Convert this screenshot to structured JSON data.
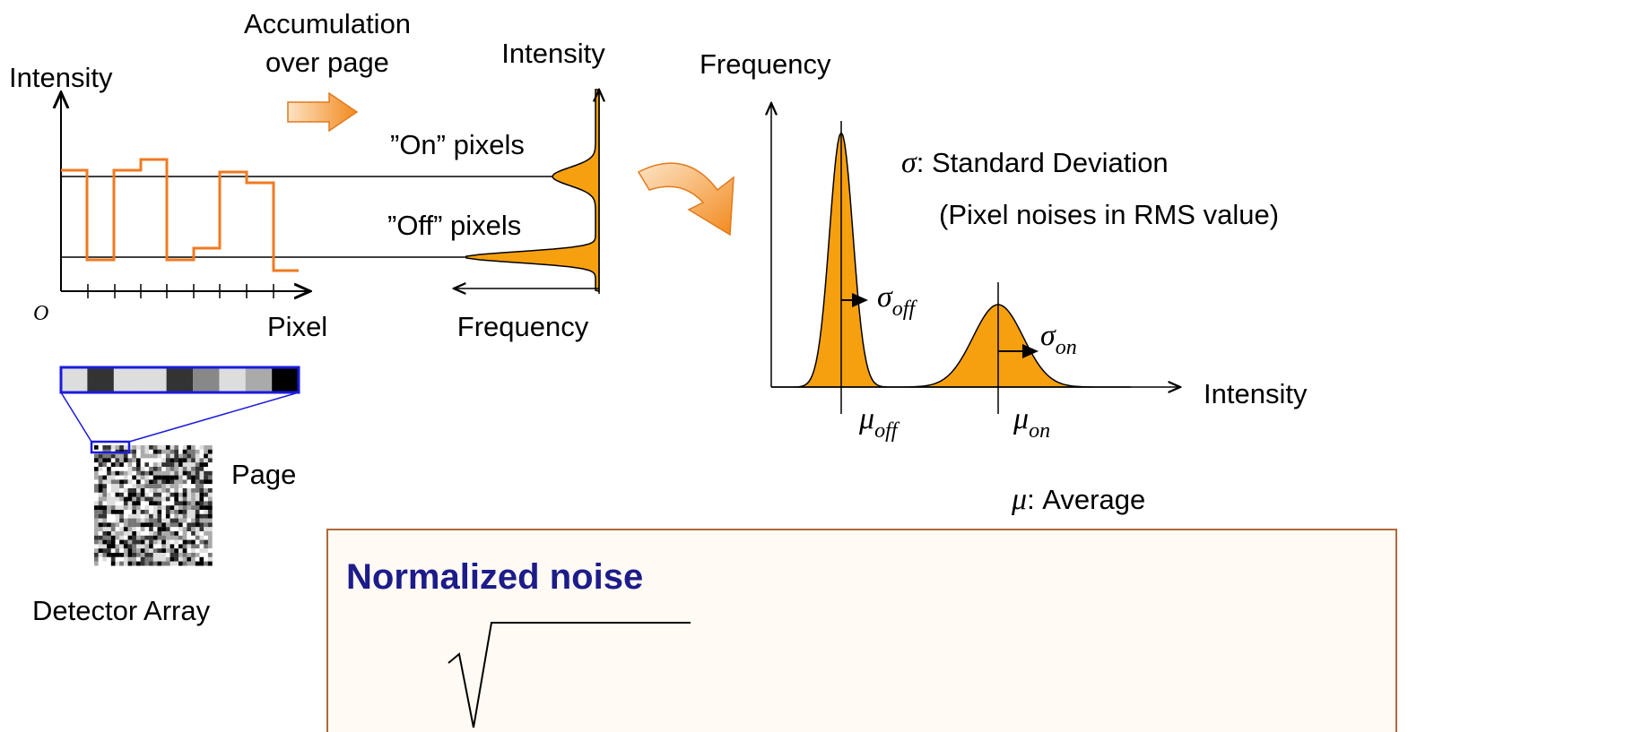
{
  "left_plot": {
    "y_label": "Intensity",
    "x_label": "Pixel",
    "origin": "O"
  },
  "accumulation": {
    "line1": "Accumulation",
    "line2": "over page"
  },
  "histogram": {
    "y_label": "Intensity",
    "x_label": "Frequency",
    "on_label": "”On” pixels",
    "off_label": "”Off” pixels"
  },
  "detector": {
    "page_label": "Page",
    "array_label": "Detector Array"
  },
  "right_plot": {
    "y_label": "Frequency",
    "x_label": "Intensity",
    "sigma_symbol": "σ",
    "sigma_text": ": Standard Deviation",
    "sigma_note": "(Pixel noises in RMS value)",
    "mu_symbol": "μ",
    "mu_text": ": Average",
    "sigma_off": {
      "symbol": "σ",
      "sub": "off"
    },
    "sigma_on": {
      "symbol": "σ",
      "sub": "on"
    },
    "mu_off": {
      "symbol": "μ",
      "sub": "off"
    },
    "mu_on": {
      "symbol": "μ",
      "sub": "on"
    }
  },
  "box": {
    "title": "Normalized noise"
  }
}
